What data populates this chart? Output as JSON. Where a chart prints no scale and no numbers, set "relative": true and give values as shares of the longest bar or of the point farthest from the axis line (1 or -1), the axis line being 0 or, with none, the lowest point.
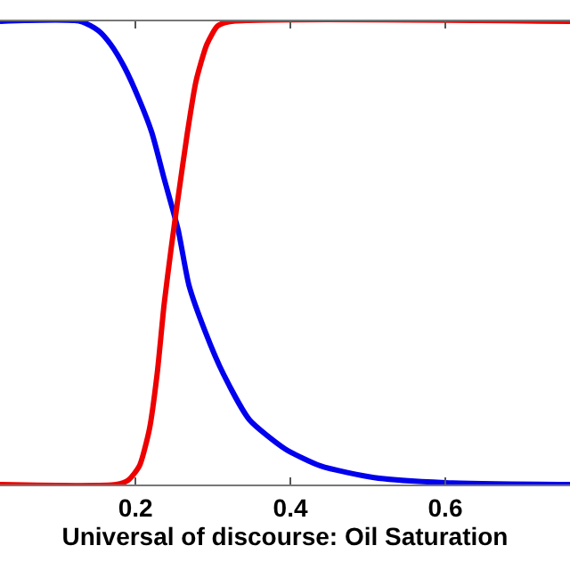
{
  "chart_data": {
    "type": "line",
    "relative": true,
    "xlabel": "Universal of discourse: Oil Saturation",
    "xlim": [
      0.025,
      0.761
    ],
    "xticks": [
      0.2,
      0.4,
      0.6
    ],
    "line_style": "solid",
    "marker": "none",
    "grid": false,
    "series": [
      {
        "color": "#0000ee",
        "x": [
          0.025,
          0.129,
          0.152,
          0.168,
          0.186,
          0.205,
          0.221,
          0.237,
          0.255,
          0.269,
          0.29,
          0.313,
          0.347,
          0.393,
          0.439,
          0.508,
          0.6,
          0.761
        ],
        "values": [
          1,
          1,
          0.98,
          0.95,
          0.9,
          0.83,
          0.76,
          0.66,
          0.55,
          0.43,
          0.33,
          0.24,
          0.14,
          0.077,
          0.04,
          0.015,
          0.004,
          0
        ]
      },
      {
        "color": "#ee0000",
        "x": [
          0.025,
          0.175,
          0.191,
          0.205,
          0.218,
          0.228,
          0.237,
          0.246,
          0.255,
          0.267,
          0.278,
          0.292,
          0.306,
          0.324,
          0.761
        ],
        "values": [
          0,
          0,
          0.01,
          0.04,
          0.12,
          0.24,
          0.39,
          0.51,
          0.62,
          0.76,
          0.87,
          0.95,
          0.99,
          1,
          1
        ]
      }
    ]
  }
}
